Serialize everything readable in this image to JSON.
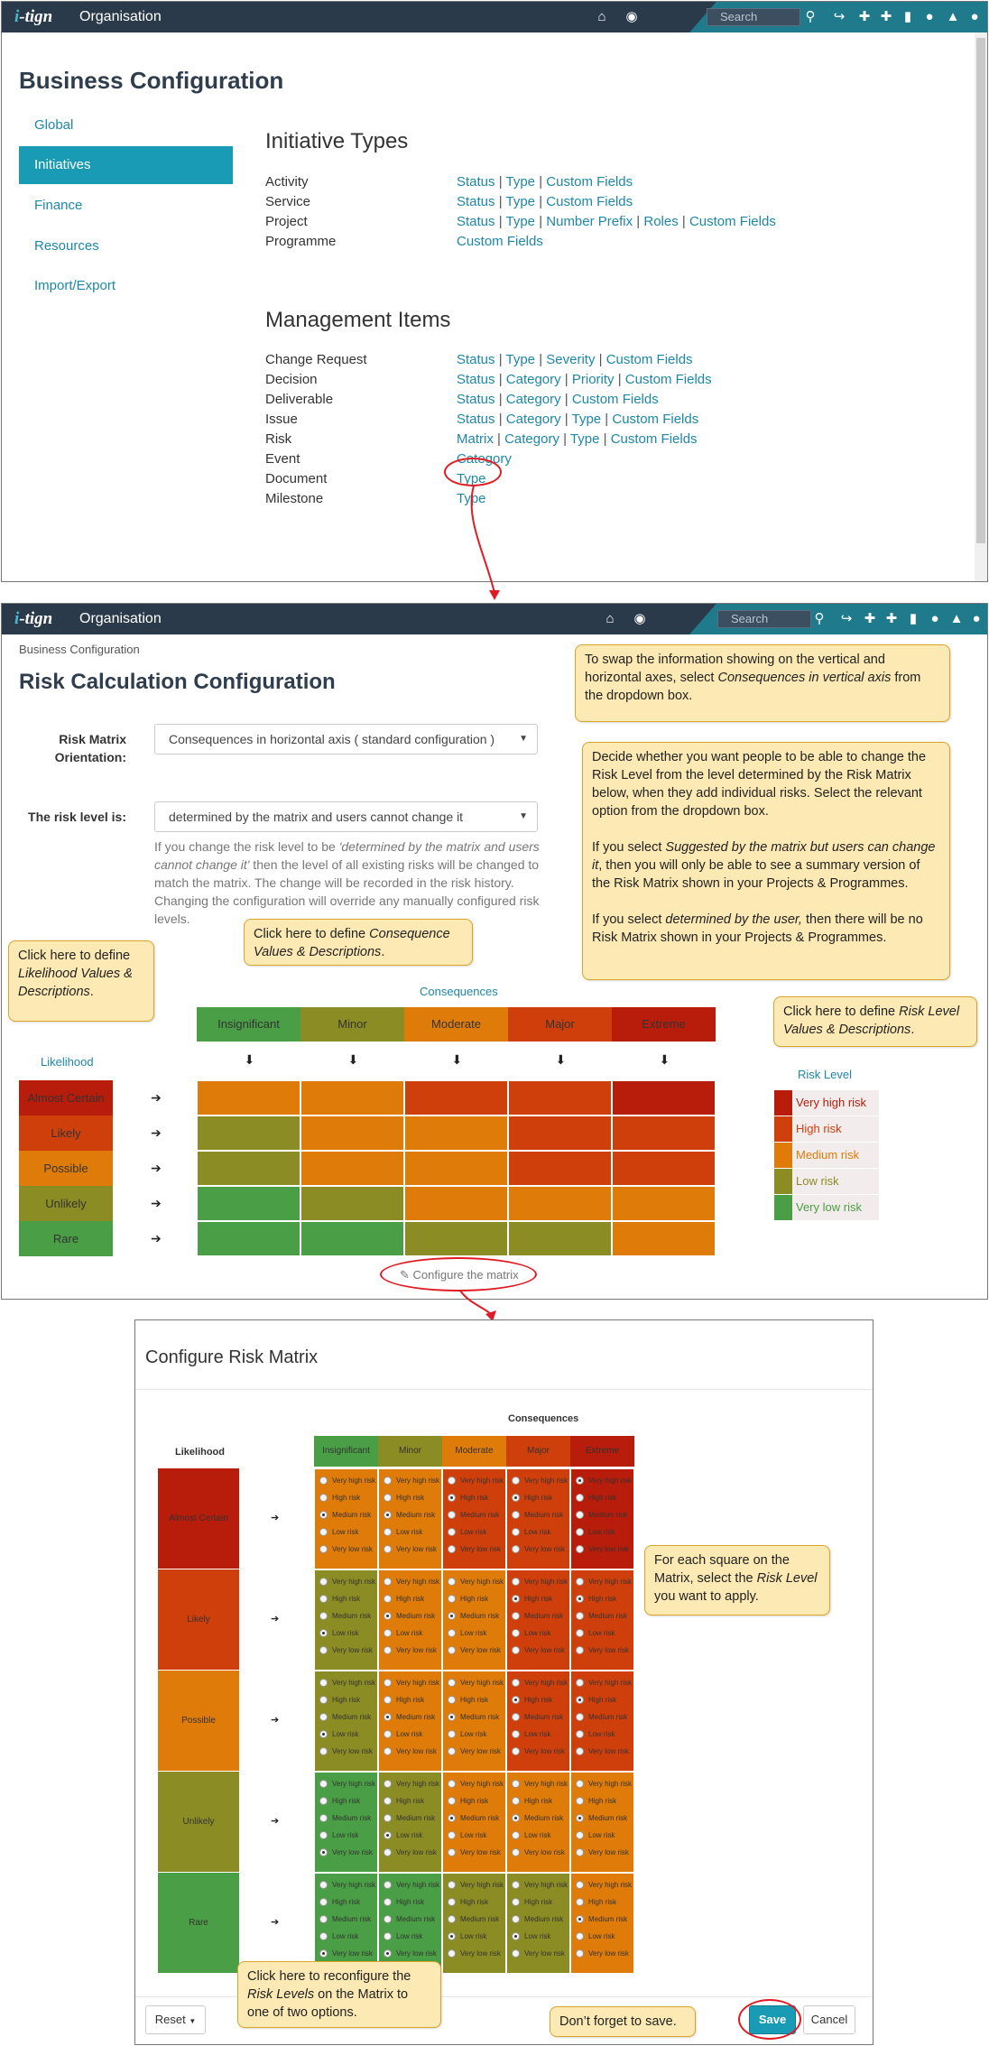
{
  "app": {
    "brand": "i-tign",
    "org": "Organisation",
    "search_placeholder": "Search"
  },
  "icons": [
    "home-icon",
    "globe-icon",
    "search-icon",
    "share-icon",
    "plus-icon",
    "user-plus-icon",
    "bookmark-icon",
    "chat-icon",
    "bell-icon",
    "user-icon"
  ],
  "colors": {
    "very_high": "#b81c0a",
    "high": "#cf3f0c",
    "medium": "#df7b08",
    "low": "#8c8c25",
    "very_low": "#4a9e45",
    "accent": "#1a9bb5",
    "navbar": "#2b3a4a"
  },
  "panel1": {
    "title": "Business Configuration",
    "nav": [
      "Global",
      "Initiatives",
      "Finance",
      "Resources",
      "Import/Export"
    ],
    "initiative_heading": "Initiative Types",
    "initiatives": [
      {
        "name": "Activity",
        "links": [
          "Status",
          "Type",
          "Custom Fields"
        ]
      },
      {
        "name": "Service",
        "links": [
          "Status",
          "Type",
          "Custom Fields"
        ]
      },
      {
        "name": "Project",
        "links": [
          "Status",
          "Type",
          "Number Prefix",
          "Roles",
          "Custom Fields"
        ]
      },
      {
        "name": "Programme",
        "links": [
          "Custom Fields"
        ]
      }
    ],
    "mgmt_heading": "Management Items",
    "mgmt": [
      {
        "name": "Change Request",
        "links": [
          "Status",
          "Type",
          "Severity",
          "Custom Fields"
        ]
      },
      {
        "name": "Decision",
        "links": [
          "Status",
          "Category",
          "Priority",
          "Custom Fields"
        ]
      },
      {
        "name": "Deliverable",
        "links": [
          "Status",
          "Category",
          "Custom Fields"
        ]
      },
      {
        "name": "Issue",
        "links": [
          "Status",
          "Category",
          "Type",
          "Custom Fields"
        ]
      },
      {
        "name": "Risk",
        "links": [
          "Matrix",
          "Category",
          "Type",
          "Custom Fields"
        ]
      },
      {
        "name": "Event",
        "links": [
          "Category"
        ]
      },
      {
        "name": "Document",
        "links": [
          "Type"
        ]
      },
      {
        "name": "Milestone",
        "links": [
          "Type"
        ]
      }
    ]
  },
  "panel2": {
    "breadcrumb": "Business Configuration",
    "title": "Risk Calculation Configuration",
    "orientation_label": "Risk Matrix Orientation:",
    "orientation_value": "Consequences in horizontal axis ( standard configuration )",
    "risk_level_label": "The risk level is:",
    "risk_level_value": "determined by the matrix and users cannot change it",
    "help_text_pre": "If you change the risk level to be ",
    "help_text_em": "'determined by the matrix and users cannot change it'",
    "help_text_post": " then the level of all existing risks will be changed to match the matrix. The change will be recorded in the risk history. Changing the configuration will override any manually configured risk levels.",
    "consequences_label": "Consequences",
    "likelihood_label": "Likelihood",
    "consequences": [
      "Insignificant",
      "Minor",
      "Moderate",
      "Major",
      "Extreme"
    ],
    "likelihoods": [
      "Almost Certain",
      "Likely",
      "Possible",
      "Unlikely",
      "Rare"
    ],
    "risk_level_title": "Risk Level",
    "risk_levels": [
      "Very high risk",
      "High risk",
      "Medium risk",
      "Low risk",
      "Very low risk"
    ],
    "configure_link": "Configure the matrix",
    "matrix": [
      [
        "medium",
        "medium",
        "high",
        "high",
        "very_high"
      ],
      [
        "low",
        "medium",
        "medium",
        "high",
        "high"
      ],
      [
        "low",
        "medium",
        "medium",
        "high",
        "high"
      ],
      [
        "very_low",
        "low",
        "medium",
        "medium",
        "medium"
      ],
      [
        "very_low",
        "very_low",
        "low",
        "low",
        "medium"
      ]
    ]
  },
  "panel3": {
    "title": "Configure Risk Matrix",
    "consequences_label": "Consequences",
    "likelihood_label": "Likelihood",
    "options": [
      "Very high risk",
      "High risk",
      "Medium risk",
      "Low risk",
      "Very low risk"
    ],
    "reset_label": "Reset",
    "save_label": "Save",
    "cancel_label": "Cancel"
  },
  "callouts": {
    "swap": "To swap the information showing on the vertical and horizontal axes, select <em>Consequences in vertical axis</em> from the dropdown box.",
    "decide": "Decide whether you want people to be able to change the Risk Level from the level determined by the Risk Matrix below, when they add individual risks.  Select the relevant option from the dropdown box.<br><br>If you select <em>Suggested by the matrix but users can change it</em>, then you will only be able to see a summary version of the Risk Matrix shown in your Projects &amp; Programmes.<br><br>If you select <em>determined by the user,</em> then there will be no Risk Matrix shown in your Projects &amp; Programmes.",
    "likelihood": "Click here to define <em>Likelihood Values &amp; Descriptions</em>.",
    "consequence": "Click here to define <em>Consequence Values &amp; Descriptions</em>.",
    "risklevel": "Click here to define <em>Risk Level Values &amp; Descriptions</em>.",
    "square": "For each square on the Matrix, select the <em>Risk Level</em> you want to apply.",
    "reset": "Click here to reconfigure the <em>Risk Levels</em> on the Matrix to one of two options.",
    "save": "Don’t forget to save."
  }
}
